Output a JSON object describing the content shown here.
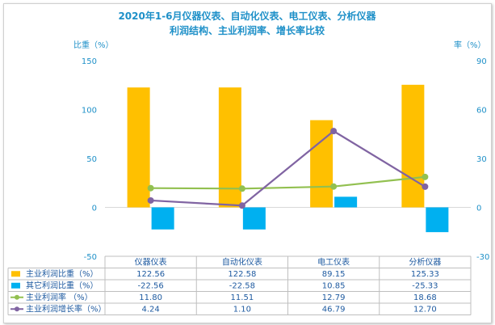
{
  "chart_data": {
    "type": "bar",
    "title_line1": "2020年1-6月仪器仪表、自动化仪表、电工仪表、分析仪器",
    "title_line2": "利润结构、主业利润率、增长率比较",
    "ylabel_left": "比重（%）",
    "ylabel_right": "率（%）",
    "categories": [
      "仪器仪表",
      "自动化仪表",
      "电工仪表",
      "分析仪器"
    ],
    "left_axis": {
      "min": -50,
      "max": 150,
      "ticks": [
        -50,
        0,
        50,
        100,
        150
      ]
    },
    "right_axis": {
      "min": -30,
      "max": 90,
      "ticks": [
        -30,
        0,
        30,
        60,
        90
      ]
    },
    "series": [
      {
        "name": "主业利润比重（%）",
        "type": "bar",
        "axis": "left",
        "color": "#FFC000",
        "values": [
          122.56,
          122.58,
          89.15,
          125.33
        ],
        "labels": [
          "122.56",
          "122.58",
          "89.15",
          "125.33"
        ]
      },
      {
        "name": "其它利润比重（%）",
        "type": "bar",
        "axis": "left",
        "color": "#00B0F0",
        "values": [
          -22.56,
          -22.58,
          10.85,
          -25.33
        ],
        "labels": [
          "-22.56",
          "-22.58",
          "10.85",
          "-25.33"
        ]
      },
      {
        "name": "主业利润率  （%）",
        "type": "line",
        "axis": "right",
        "color": "#92C050",
        "values": [
          11.8,
          11.51,
          12.79,
          18.68
        ],
        "labels": [
          "11.80",
          "11.51",
          "12.79",
          "18.68"
        ]
      },
      {
        "name": "主业利润增长率（%）",
        "type": "line",
        "axis": "right",
        "color": "#8064A2",
        "values": [
          4.24,
          1.1,
          46.79,
          12.7
        ],
        "labels": [
          "4.24",
          "1.10",
          "46.79",
          "12.70"
        ]
      }
    ],
    "grid": false,
    "legend": "data-table"
  }
}
